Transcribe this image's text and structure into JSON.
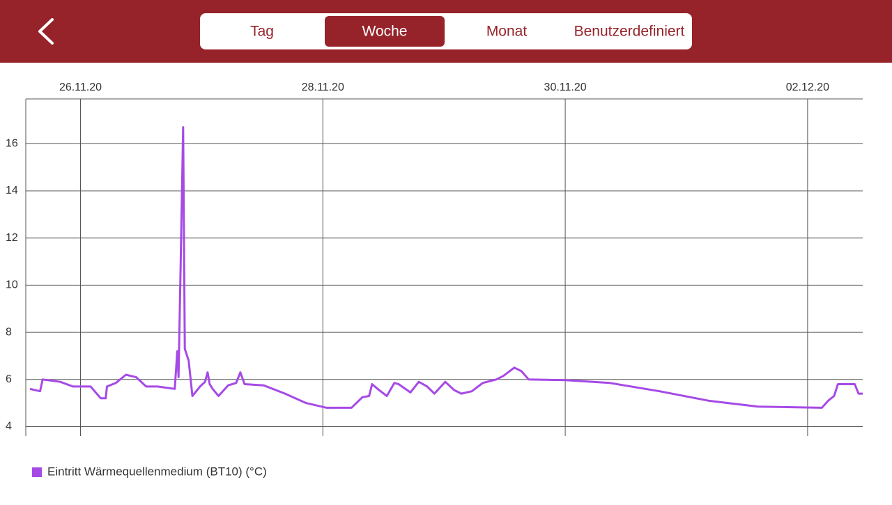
{
  "tabs": {
    "items": [
      "Tag",
      "Woche",
      "Monat",
      "Benutzerdefiniert"
    ],
    "selected": 1
  },
  "chart_data": {
    "type": "line",
    "x": [
      "2020-11-25T14:00",
      "2020-11-25T16:00",
      "2020-11-25T16:30",
      "2020-11-25T20:00",
      "2020-11-25T22:30",
      "2020-11-26T02:00",
      "2020-11-26T04:00",
      "2020-11-26T05:00",
      "2020-11-26T05:15",
      "2020-11-26T07:00",
      "2020-11-26T09:00",
      "2020-11-26T11:00",
      "2020-11-26T13:00",
      "2020-11-26T15:15",
      "2020-11-26T18:40",
      "2020-11-26T19:10",
      "2020-11-26T19:25",
      "2020-11-26T19:50",
      "2020-11-26T20:20",
      "2020-11-26T20:40",
      "2020-11-26T21:25",
      "2020-11-26T22:10",
      "2020-11-26T23:40",
      "2020-11-27T00:40",
      "2020-11-27T01:10",
      "2020-11-27T01:35",
      "2020-11-27T02:10",
      "2020-11-27T03:20",
      "2020-11-27T05:15",
      "2020-11-27T06:50",
      "2020-11-27T07:40",
      "2020-11-27T08:30",
      "2020-11-27T12:15",
      "2020-11-27T16:30",
      "2020-11-27T20:40",
      "2020-11-28T00:45",
      "2020-11-28T05:40",
      "2020-11-28T07:50",
      "2020-11-28T09:10",
      "2020-11-28T09:45",
      "2020-11-28T10:50",
      "2020-11-28T12:40",
      "2020-11-28T14:10",
      "2020-11-28T15:00",
      "2020-11-28T17:20",
      "2020-11-28T19:00",
      "2020-11-28T20:40",
      "2020-11-28T22:05",
      "2020-11-29T00:15",
      "2020-11-29T02:00",
      "2020-11-29T03:25",
      "2020-11-29T05:30",
      "2020-11-29T07:40",
      "2020-11-29T10:20",
      "2020-11-29T11:45",
      "2020-11-29T13:55",
      "2020-11-29T15:20",
      "2020-11-29T16:45",
      "2020-11-30T00:00",
      "2020-11-30T08:50",
      "2020-11-30T18:40",
      "2020-12-01T04:20",
      "2020-12-01T14:10",
      "2020-12-02T02:50",
      "2020-12-02T04:05",
      "2020-12-02T05:15",
      "2020-12-02T06:00",
      "2020-12-02T09:20",
      "2020-12-02T10:05",
      "2020-12-02T10:55"
    ],
    "series": [
      {
        "name": "Eintritt Wärmequellenmedium (BT10) (°C)",
        "color": "#a64ae6",
        "values": [
          5.6,
          5.5,
          6.0,
          5.9,
          5.7,
          5.7,
          5.2,
          5.2,
          5.7,
          5.85,
          6.2,
          6.1,
          5.7,
          5.7,
          5.6,
          7.2,
          6.1,
          10.8,
          16.7,
          7.3,
          6.8,
          5.3,
          5.7,
          5.9,
          6.3,
          5.8,
          5.6,
          5.3,
          5.75,
          5.85,
          6.3,
          5.8,
          5.75,
          5.4,
          5.0,
          4.8,
          4.8,
          5.25,
          5.3,
          5.8,
          5.6,
          5.3,
          5.85,
          5.8,
          5.45,
          5.9,
          5.7,
          5.4,
          5.9,
          5.55,
          5.4,
          5.5,
          5.85,
          6.0,
          6.15,
          6.5,
          6.35,
          6.0,
          5.97,
          5.85,
          5.5,
          5.1,
          4.85,
          4.8,
          5.1,
          5.3,
          5.8,
          5.8,
          5.4,
          5.4
        ]
      }
    ],
    "xlim": [
      "2020-11-25T13:10",
      "2020-12-02T10:55"
    ],
    "xticks": [
      {
        "value": "2020-11-26T00:00",
        "label": "26.11.20"
      },
      {
        "value": "2020-11-28T00:00",
        "label": "28.11.20"
      },
      {
        "value": "2020-11-30T00:00",
        "label": "30.11.20"
      },
      {
        "value": "2020-12-02T00:00",
        "label": "02.12.20"
      }
    ],
    "ylim": [
      3.6,
      17.9
    ],
    "yticks": [
      4,
      6,
      8,
      10,
      12,
      14,
      16
    ],
    "grid": true
  }
}
